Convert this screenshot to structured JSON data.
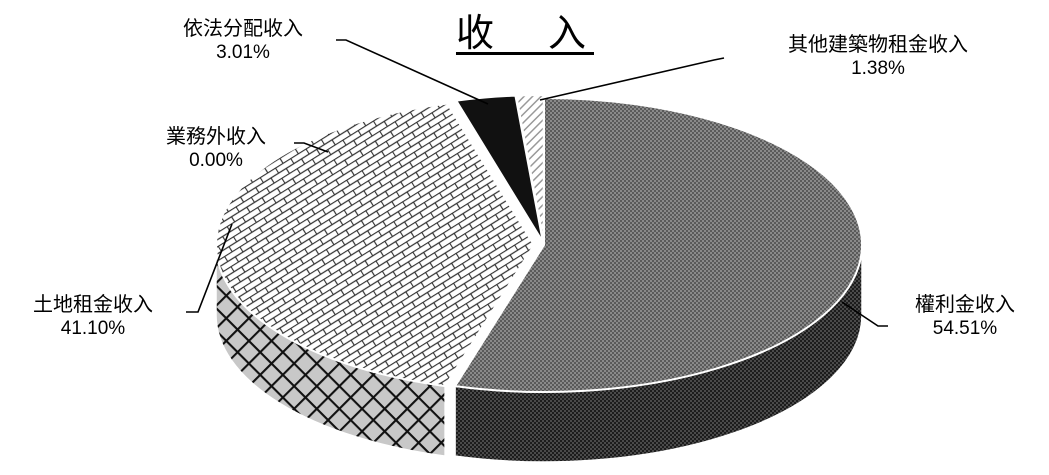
{
  "chart_data": {
    "type": "pie",
    "title": "收　入",
    "style": "3d-exploded-slices-with-fill-patterns",
    "slices": [
      {
        "name": "權利金收入",
        "value": 54.51,
        "label": "54.51%",
        "pattern": "fine-checker"
      },
      {
        "name": "土地租金收入",
        "value": 41.1,
        "label": "41.10%",
        "pattern": "brick"
      },
      {
        "name": "業務外收入",
        "value": 0.0,
        "label": "0.00%",
        "pattern": "none"
      },
      {
        "name": "依法分配收入",
        "value": 3.01,
        "label": "3.01%",
        "pattern": "solid-black"
      },
      {
        "name": "其他建築物租金收入",
        "value": 1.38,
        "label": "1.38%",
        "pattern": "diagonal-stripes"
      }
    ]
  }
}
